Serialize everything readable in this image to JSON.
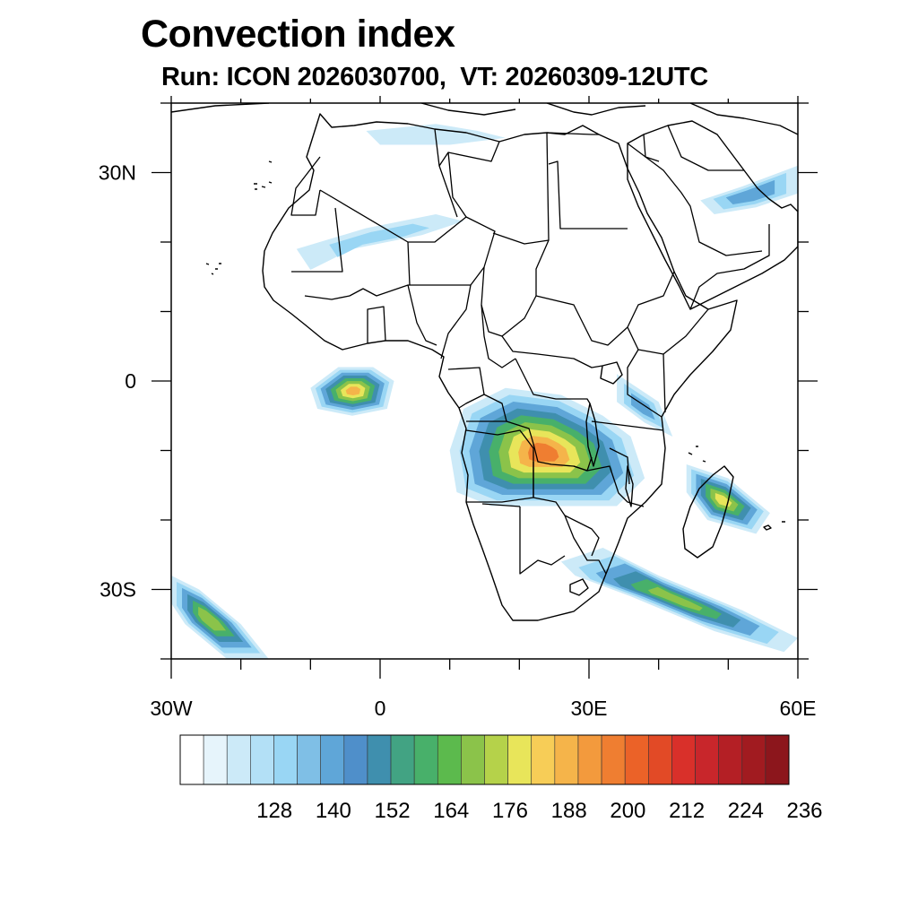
{
  "title": "Convection index",
  "subtitle": "Run: ICON 2026030700,  VT: 20260309-12UTC",
  "axes": {
    "x_ticks": [
      {
        "value": -30,
        "label": "30W"
      },
      {
        "value": 0,
        "label": "0"
      },
      {
        "value": 30,
        "label": "30E"
      },
      {
        "value": 60,
        "label": "60E"
      }
    ],
    "y_ticks": [
      {
        "value": 30,
        "label": "30N"
      },
      {
        "value": 0,
        "label": "0"
      },
      {
        "value": -30,
        "label": "30S"
      }
    ],
    "lon_range": [
      -30,
      60
    ],
    "lat_range": [
      -40,
      40
    ]
  },
  "colorbar": {
    "colors": [
      "#ffffff",
      "#e6f4fb",
      "#cceaf8",
      "#b3e0f6",
      "#99d6f4",
      "#7fbfe6",
      "#5fa6d8",
      "#4f8fca",
      "#3f8fae",
      "#42a383",
      "#48b06a",
      "#5cba4d",
      "#8bc34a",
      "#b5d24a",
      "#e8e55a",
      "#f7cd57",
      "#f5b44a",
      "#f39a3d",
      "#ef7e31",
      "#eb6228",
      "#e24a26",
      "#d9302a",
      "#c8262b",
      "#b41f25",
      "#a11b20",
      "#8c161c"
    ],
    "labels": [
      {
        "pos": 3,
        "text": "128"
      },
      {
        "pos": 6,
        "text": "140"
      },
      {
        "pos": 9,
        "text": "152"
      },
      {
        "pos": 12,
        "text": "164"
      },
      {
        "pos": 15,
        "text": "176"
      },
      {
        "pos": 18,
        "text": "188"
      },
      {
        "pos": 21,
        "text": "200"
      },
      {
        "pos": 24,
        "text": "212"
      },
      {
        "pos": 27,
        "text": "224"
      },
      {
        "pos": 30,
        "text": "236"
      }
    ]
  },
  "fields": [
    {
      "name": "congo-core",
      "level": 18,
      "pts": [
        [
          12,
          -4
        ],
        [
          18,
          -1
        ],
        [
          26,
          -2
        ],
        [
          32,
          -5
        ],
        [
          36,
          -8
        ],
        [
          38,
          -14
        ],
        [
          34,
          -18
        ],
        [
          24,
          -18
        ],
        [
          16,
          -18
        ],
        [
          11,
          -16
        ],
        [
          10,
          -10
        ]
      ]
    },
    {
      "name": "gulf-guinea-cluster",
      "level": 16,
      "pts": [
        [
          -10,
          -1
        ],
        [
          -6,
          2
        ],
        [
          -1,
          2
        ],
        [
          2,
          0
        ],
        [
          1,
          -4
        ],
        [
          -4,
          -5
        ],
        [
          -9,
          -4
        ]
      ]
    },
    {
      "name": "madagascar-band",
      "level": 14,
      "pts": [
        [
          44,
          -12
        ],
        [
          50,
          -14
        ],
        [
          56,
          -19
        ],
        [
          54,
          -22
        ],
        [
          47,
          -20
        ],
        [
          44,
          -16
        ]
      ]
    },
    {
      "name": "mozambique-channel-band",
      "level": 12,
      "pts": [
        [
          26,
          -26
        ],
        [
          32,
          -24
        ],
        [
          40,
          -28
        ],
        [
          52,
          -33
        ],
        [
          60,
          -37
        ],
        [
          58,
          -39
        ],
        [
          48,
          -36
        ],
        [
          36,
          -31
        ],
        [
          28,
          -28
        ]
      ]
    },
    {
      "name": "south-atlantic-band",
      "level": 13,
      "pts": [
        [
          -30,
          -28
        ],
        [
          -26,
          -30
        ],
        [
          -20,
          -35
        ],
        [
          -16,
          -40
        ],
        [
          -22,
          -40
        ],
        [
          -28,
          -35
        ],
        [
          -30,
          -32
        ]
      ]
    },
    {
      "name": "sahara-streak",
      "level": 4,
      "pts": [
        [
          -12,
          19
        ],
        [
          -2,
          22
        ],
        [
          8,
          24
        ],
        [
          12,
          23
        ],
        [
          6,
          21
        ],
        [
          -4,
          19
        ],
        [
          -10,
          16
        ]
      ]
    },
    {
      "name": "east-africa-shower",
      "level": 6,
      "pts": [
        [
          34,
          1
        ],
        [
          40,
          -3
        ],
        [
          42,
          -8
        ],
        [
          38,
          -6
        ],
        [
          34,
          -3
        ]
      ]
    },
    {
      "name": "mideast-band",
      "level": 7,
      "pts": [
        [
          46,
          26
        ],
        [
          52,
          28
        ],
        [
          60,
          31
        ],
        [
          60,
          27
        ],
        [
          54,
          25
        ],
        [
          48,
          24
        ]
      ]
    },
    {
      "name": "north-africa-streak",
      "level": 3,
      "pts": [
        [
          -2,
          36
        ],
        [
          8,
          37
        ],
        [
          14,
          36
        ],
        [
          18,
          35
        ],
        [
          10,
          34
        ],
        [
          0,
          34
        ]
      ]
    }
  ]
}
